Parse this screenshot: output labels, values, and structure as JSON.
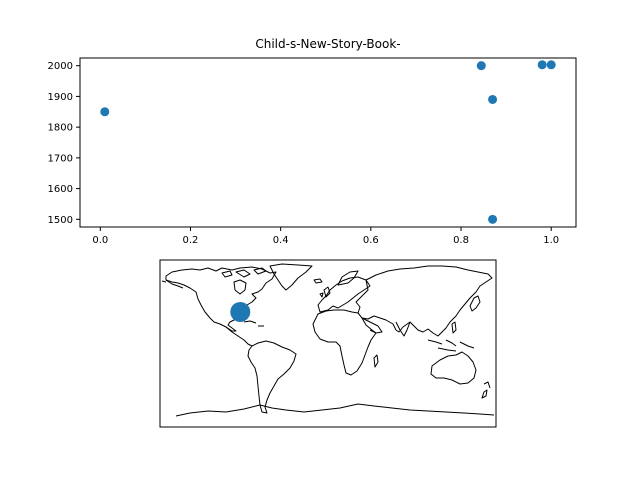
{
  "chart_data": [
    {
      "type": "scatter",
      "title": "Child-s-New-Story-Book-",
      "xlabel": "",
      "ylabel": "",
      "xlim": [
        -0.045,
        1.055
      ],
      "ylim": [
        1475,
        2025
      ],
      "xticks": [
        0.0,
        0.2,
        0.4,
        0.6,
        0.8,
        1.0
      ],
      "xtick_labels": [
        "0.0",
        "0.2",
        "0.4",
        "0.6",
        "0.8",
        "1.0"
      ],
      "yticks": [
        1500,
        1600,
        1700,
        1800,
        1900,
        2000
      ],
      "ytick_labels": [
        "1500",
        "1600",
        "1700",
        "1800",
        "1900",
        "2000"
      ],
      "grid": false,
      "color": "#1f77b4",
      "points": [
        {
          "x": 0.01,
          "y": 1850
        },
        {
          "x": 0.845,
          "y": 2000
        },
        {
          "x": 0.87,
          "y": 1890
        },
        {
          "x": 0.87,
          "y": 1500
        },
        {
          "x": 0.98,
          "y": 2003
        },
        {
          "x": 1.0,
          "y": 2003
        }
      ]
    },
    {
      "type": "map",
      "projection": "equirectangular",
      "extent": {
        "lon": [
          -180,
          180
        ],
        "lat": [
          -90,
          90
        ]
      },
      "color": "#1f77b4",
      "markers": [
        {
          "lon": -94,
          "lat": 34
        }
      ]
    }
  ]
}
